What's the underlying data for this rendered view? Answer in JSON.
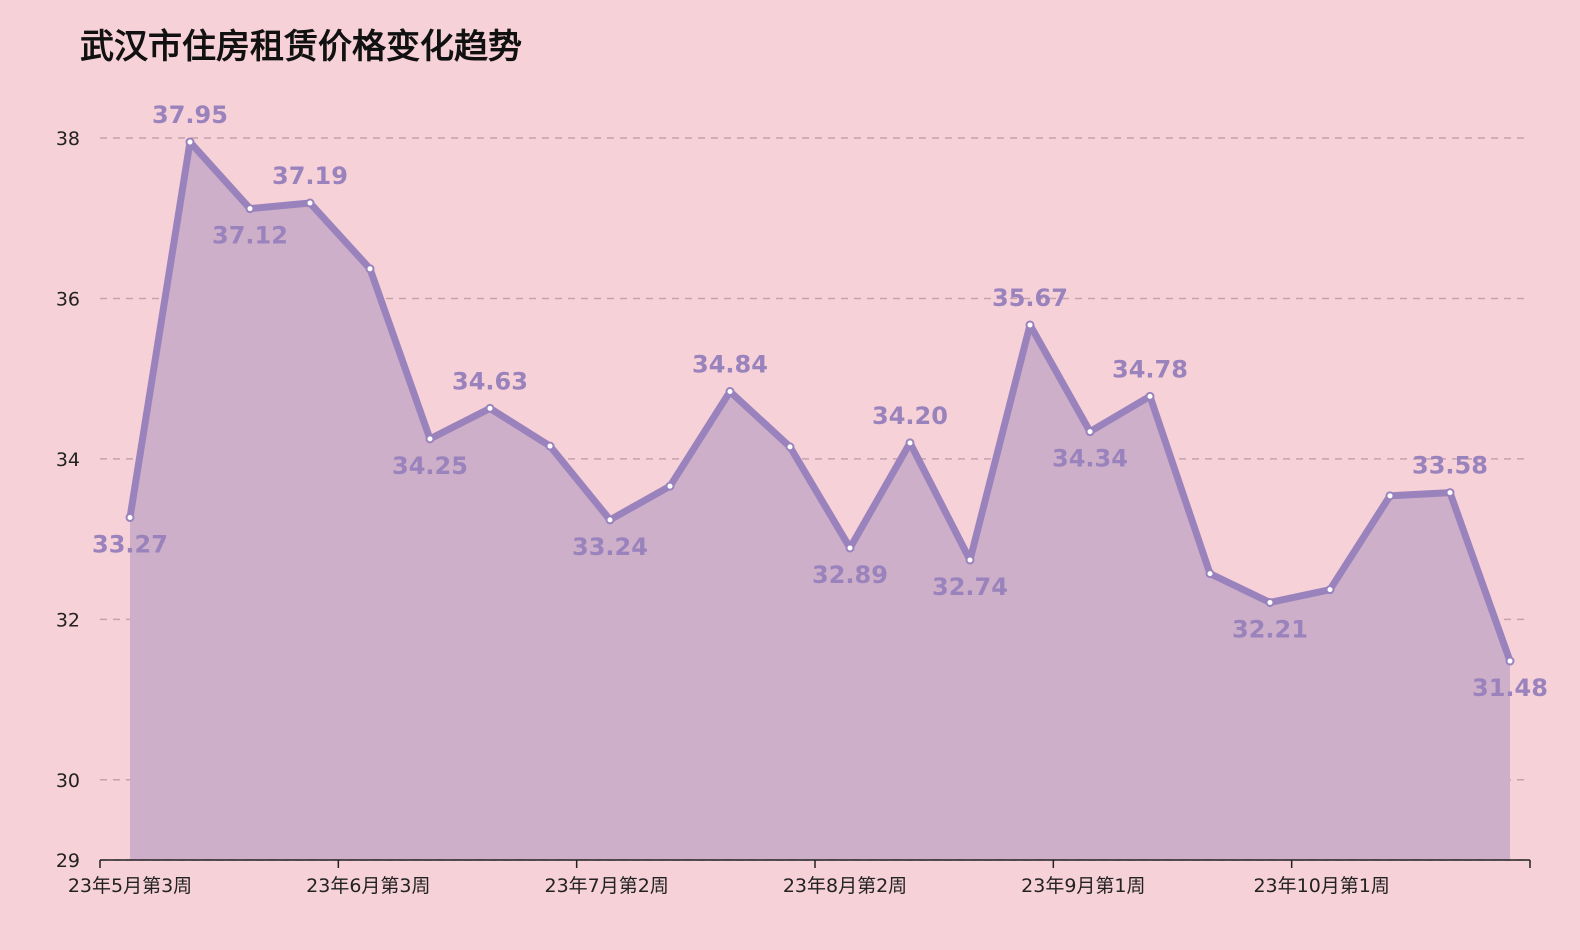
{
  "chart_data": {
    "type": "area",
    "title": "武汉市住房租赁价格变化趋势",
    "xlabel": "",
    "ylabel": "",
    "ylim": [
      29,
      38.2
    ],
    "yticks": [
      29,
      30,
      32,
      34,
      36,
      38
    ],
    "grid": true,
    "x_tick_labels": [
      "23年5月第3周",
      "23年6月第3周",
      "23年7月第2周",
      "23年8月第2周",
      "23年9月第1周",
      "23年10月第1周"
    ],
    "values": [
      33.27,
      37.95,
      37.12,
      37.19,
      36.37,
      34.25,
      34.63,
      34.16,
      33.24,
      33.66,
      34.84,
      34.15,
      32.89,
      34.2,
      32.74,
      35.67,
      34.34,
      34.78,
      32.57,
      32.21,
      32.37,
      33.54,
      33.58,
      31.48
    ],
    "data_labels": [
      {
        "index": 0,
        "text": "33.27",
        "pos": "below"
      },
      {
        "index": 1,
        "text": "37.95",
        "pos": "above"
      },
      {
        "index": 2,
        "text": "37.12",
        "pos": "below"
      },
      {
        "index": 3,
        "text": "37.19",
        "pos": "above"
      },
      {
        "index": 5,
        "text": "34.25",
        "pos": "below"
      },
      {
        "index": 6,
        "text": "34.63",
        "pos": "above"
      },
      {
        "index": 8,
        "text": "33.24",
        "pos": "below"
      },
      {
        "index": 10,
        "text": "34.84",
        "pos": "above"
      },
      {
        "index": 12,
        "text": "32.89",
        "pos": "below"
      },
      {
        "index": 13,
        "text": "34.20",
        "pos": "above"
      },
      {
        "index": 14,
        "text": "32.74",
        "pos": "below"
      },
      {
        "index": 15,
        "text": "35.67",
        "pos": "above"
      },
      {
        "index": 16,
        "text": "34.34",
        "pos": "below"
      },
      {
        "index": 17,
        "text": "34.78",
        "pos": "above"
      },
      {
        "index": 19,
        "text": "32.21",
        "pos": "below"
      },
      {
        "index": 22,
        "text": "33.58",
        "pos": "above"
      },
      {
        "index": 23,
        "text": "31.48",
        "pos": "below"
      }
    ],
    "colors": {
      "background": "#f6d1d8",
      "line": "#9a83bc",
      "area": "#cdafc9",
      "grid": "#c4a3ae",
      "axis": "#222222"
    }
  }
}
